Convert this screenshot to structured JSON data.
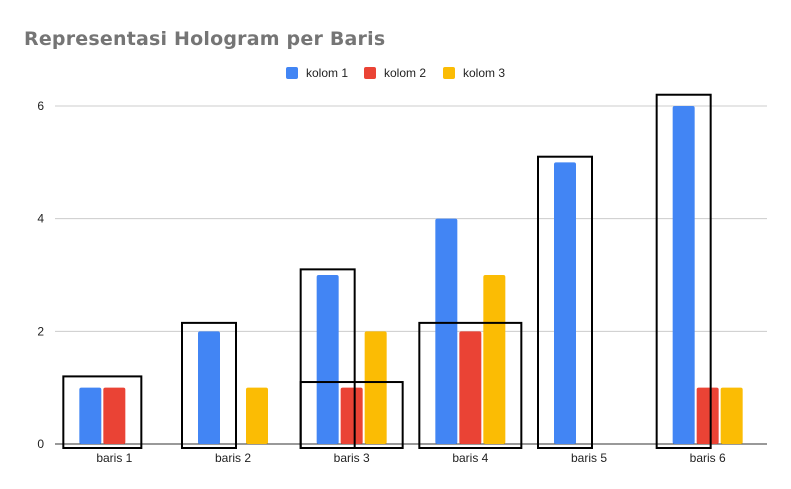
{
  "chart_data": {
    "type": "bar",
    "title": "Representasi Hologram per Baris",
    "categories": [
      "baris 1",
      "baris 2",
      "baris 3",
      "baris 4",
      "baris 5",
      "baris 6"
    ],
    "series": [
      {
        "name": "kolom 1",
        "color": "#4285f4",
        "values": [
          1,
          2,
          3,
          4,
          5,
          6
        ]
      },
      {
        "name": "kolom 2",
        "color": "#ea4335",
        "values": [
          1,
          0,
          1,
          2,
          0,
          1
        ]
      },
      {
        "name": "kolom 3",
        "color": "#fbbc04",
        "values": [
          0,
          1,
          2,
          3,
          0,
          1
        ]
      }
    ],
    "ylim": [
      0,
      6
    ],
    "yticks": [
      "0",
      "2",
      "4",
      "6"
    ],
    "grid": true,
    "legend_position": "top-center",
    "highlight_boxes": [
      {
        "category": "baris 1",
        "series": [
          "kolom 1",
          "kolom 2"
        ],
        "top_value": 1.2
      },
      {
        "category": "baris 2",
        "series": [
          "kolom 1"
        ],
        "top_value": 2.15
      },
      {
        "category": "baris 3",
        "series": [
          "kolom 1"
        ],
        "top_value": 3.1
      },
      {
        "category": "baris 3",
        "series": [
          "kolom 1",
          "kolom 2",
          "kolom 3"
        ],
        "top_value": 1.1
      },
      {
        "category": "baris 4",
        "series": [
          "kolom 1",
          "kolom 2",
          "kolom 3"
        ],
        "top_value": 2.15
      },
      {
        "category": "baris 5",
        "series": [
          "kolom 1"
        ],
        "top_value": 5.1
      },
      {
        "category": "baris 6",
        "series": [
          "kolom 1"
        ],
        "top_value": 6.2
      }
    ]
  }
}
